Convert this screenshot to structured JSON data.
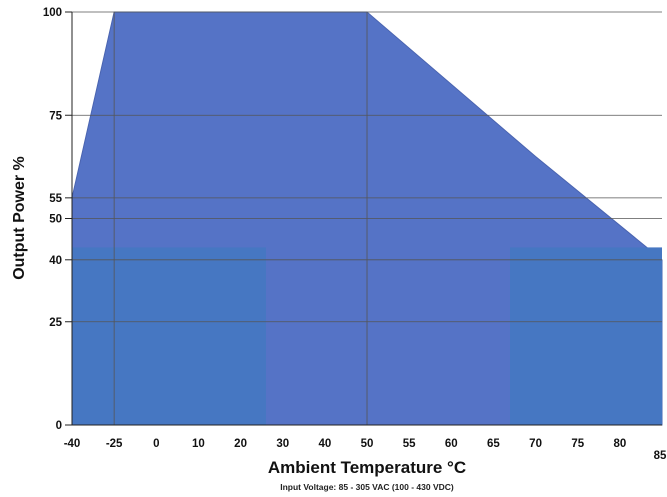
{
  "chart_data": {
    "type": "area",
    "xlabel": "Ambient Temperature  °C",
    "ylabel": "Output Power %",
    "footnote": "Input Voltage: 85 - 305 VAC (100 - 430 VDC)",
    "x_ticks": [
      "-40",
      "-25",
      "0",
      "10",
      "20",
      "30",
      "40",
      "50",
      "55",
      "60",
      "65",
      "70",
      "75",
      "80",
      "85"
    ],
    "y_ticks": [
      0,
      25,
      40,
      50,
      55,
      75,
      100
    ],
    "ylim": [
      0,
      100
    ],
    "grid": true,
    "series": [
      {
        "x": [
          "-40",
          "-25",
          "50",
          "70",
          "85"
        ],
        "y": [
          55,
          100,
          100,
          65,
          40
        ]
      }
    ],
    "colors": {
      "fill": "#5573c6",
      "fill_lower": "#4677c2",
      "grid": "#555555",
      "axis": "#222222"
    }
  }
}
